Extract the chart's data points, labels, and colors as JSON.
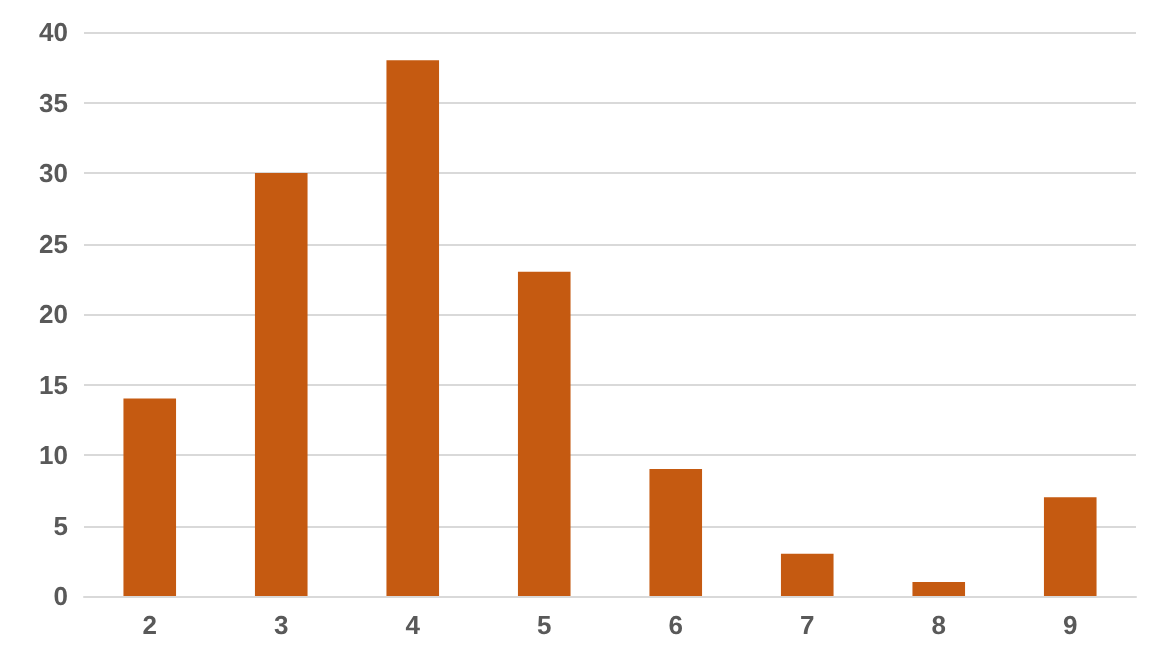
{
  "chart_data": {
    "type": "bar",
    "categories": [
      "2",
      "3",
      "4",
      "5",
      "6",
      "7",
      "8",
      "9"
    ],
    "values": [
      14,
      30,
      38,
      23,
      9,
      3,
      1,
      7
    ],
    "color": "#c55a11",
    "ylim": [
      0,
      40
    ],
    "yticks": [
      0,
      5,
      10,
      15,
      20,
      25,
      30,
      35,
      40
    ],
    "grid": "y"
  }
}
